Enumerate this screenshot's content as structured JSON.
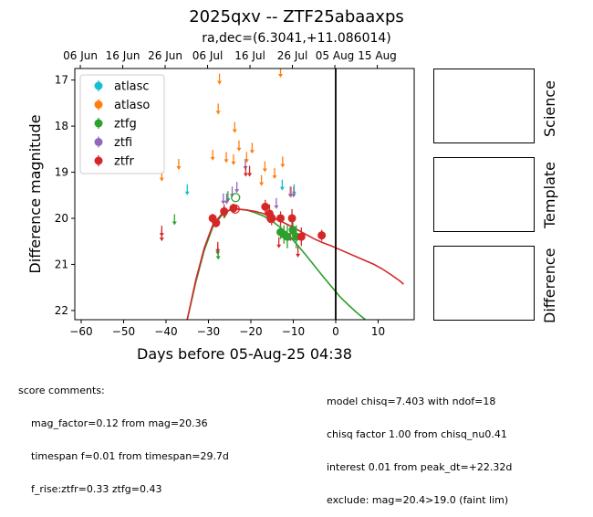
{
  "title": "2025qxv -- ZTF25abaaxps",
  "subtitle": "ra,dec=(6.3041,+11.086014)",
  "chart_data": {
    "type": "scatter",
    "xlabel": "Days before 05-Aug-25 04:38",
    "ylabel": "Difference magnitude",
    "xlim": [
      -61.5,
      18.5
    ],
    "ylim": [
      22.2,
      16.75
    ],
    "y_inverted": true,
    "x_ticks": [
      -60,
      -50,
      -40,
      -30,
      -20,
      -10,
      0,
      10
    ],
    "y_ticks": [
      17,
      18,
      19,
      20,
      21,
      22
    ],
    "top_axis_ticks": [
      {
        "x": -60.2,
        "label": "06 Jun"
      },
      {
        "x": -50.2,
        "label": "16 Jun"
      },
      {
        "x": -40.2,
        "label": "26 Jun"
      },
      {
        "x": -30.2,
        "label": "06 Jul"
      },
      {
        "x": -20.2,
        "label": "16 Jul"
      },
      {
        "x": -10.2,
        "label": "26 Jul"
      },
      {
        "x": -0.2,
        "label": "05 Aug"
      },
      {
        "x": 9.8,
        "label": "15 Aug"
      }
    ],
    "vline_x": 0,
    "legend": {
      "placement": "top-left",
      "entries": [
        {
          "name": "atlasc",
          "color": "#17becf"
        },
        {
          "name": "atlaso",
          "color": "#ff7f0e"
        },
        {
          "name": "ztfg",
          "color": "#2ca02c"
        },
        {
          "name": "ztfi",
          "color": "#9467bd"
        },
        {
          "name": "ztfr",
          "color": "#d62728"
        }
      ]
    },
    "upper_limits": [
      {
        "series": "atlasc",
        "color": "#17becf",
        "points": [
          [
            -35,
            19.4
          ],
          [
            -12.6,
            19.3
          ],
          [
            -9.8,
            19.4
          ]
        ]
      },
      {
        "series": "atlaso",
        "color": "#ff7f0e",
        "points": [
          [
            -41,
            19.1
          ],
          [
            -37,
            18.85
          ],
          [
            -29,
            18.65
          ],
          [
            -27.7,
            17.65
          ],
          [
            -27.4,
            17.0
          ],
          [
            -25.8,
            18.7
          ],
          [
            -24.1,
            18.75
          ],
          [
            -23.8,
            18.05
          ],
          [
            -22.8,
            18.45
          ],
          [
            -21,
            18.7
          ],
          [
            -19.7,
            18.5
          ],
          [
            -17.5,
            19.2
          ],
          [
            -16.7,
            18.9
          ],
          [
            -14.4,
            19.05
          ],
          [
            -12.5,
            18.8
          ],
          [
            -13,
            16.85
          ],
          [
            -10.5,
            19.45
          ]
        ]
      },
      {
        "series": "ztfg",
        "color": "#2ca02c",
        "points": [
          [
            -38,
            20.05
          ],
          [
            -27.8,
            20.7
          ],
          [
            -27.7,
            20.8
          ],
          [
            -26.2,
            19.9
          ],
          [
            -25.4,
            19.55
          ],
          [
            -10.1,
            20.3
          ]
        ]
      },
      {
        "series": "ztfi",
        "color": "#9467bd",
        "points": [
          [
            -26.5,
            19.6
          ],
          [
            -25.7,
            19.6
          ],
          [
            -24.4,
            19.45
          ],
          [
            -23.3,
            19.35
          ],
          [
            -21.3,
            18.85
          ],
          [
            -14,
            19.7
          ],
          [
            -10.7,
            19.45
          ],
          [
            -9.9,
            19.45
          ]
        ]
      },
      {
        "series": "ztfr",
        "color": "#d62728",
        "points": [
          [
            -41,
            20.3
          ],
          [
            -41,
            20.4
          ],
          [
            -27.8,
            20.65
          ],
          [
            -21.2,
            19.0
          ],
          [
            -20.3,
            19.0
          ],
          [
            -13.4,
            20.55
          ],
          [
            -10.7,
            20.4
          ],
          [
            -8.9,
            20.75
          ],
          [
            -10.3,
            20.2
          ]
        ]
      }
    ],
    "detections": [
      {
        "series": "ztfg",
        "color": "#2ca02c",
        "points": [
          [
            -13,
            20.3,
            0.15
          ],
          [
            -12.2,
            20.35,
            0.2
          ],
          [
            -11.4,
            20.4,
            0.25
          ],
          [
            -10.1,
            20.25,
            0.2
          ],
          [
            -9.3,
            20.4,
            0.25
          ]
        ]
      },
      {
        "series": "ztfr",
        "color": "#d62728",
        "points": [
          [
            -29,
            20.0,
            0.1
          ],
          [
            -28.2,
            20.1,
            0.1
          ],
          [
            -26.3,
            19.85,
            0.15
          ],
          [
            -24.1,
            19.78,
            0.1
          ],
          [
            -16.6,
            19.75,
            0.15
          ],
          [
            -15.6,
            19.9,
            0.2
          ],
          [
            -15.1,
            20.0,
            0.15
          ],
          [
            -13,
            20.0,
            0.15
          ],
          [
            -10.3,
            20.0,
            0.2
          ],
          [
            -8.1,
            20.4,
            0.2
          ],
          [
            -3.3,
            20.37,
            0.12
          ]
        ]
      }
    ],
    "open_markers": [
      {
        "series": "ztfg",
        "color": "#2ca02c",
        "x": -23.6,
        "y": 19.55
      },
      {
        "series": "ztfr",
        "color": "#d62728",
        "x": -23.7,
        "y": 19.8
      },
      {
        "series": "ztfr",
        "color": "#d62728",
        "x": -15.2,
        "y": 20.0
      }
    ],
    "model_curves": [
      {
        "series": "ztfg",
        "color": "#2ca02c",
        "points": [
          [
            -35,
            22.2
          ],
          [
            -33,
            21.4
          ],
          [
            -31,
            20.7
          ],
          [
            -29,
            20.2
          ],
          [
            -27,
            19.95
          ],
          [
            -25,
            19.82
          ],
          [
            -23,
            19.8
          ],
          [
            -21,
            19.82
          ],
          [
            -19,
            19.88
          ],
          [
            -17,
            19.95
          ],
          [
            -15,
            20.06
          ],
          [
            -13,
            20.2
          ],
          [
            -11,
            20.38
          ],
          [
            -9,
            20.58
          ],
          [
            -7,
            20.8
          ],
          [
            -5,
            21.03
          ],
          [
            -3,
            21.26
          ],
          [
            -1,
            21.48
          ],
          [
            1,
            21.7
          ],
          [
            3,
            21.88
          ],
          [
            5,
            22.05
          ],
          [
            7,
            22.2
          ]
        ]
      },
      {
        "series": "ztfr",
        "color": "#d62728",
        "points": [
          [
            -35,
            22.2
          ],
          [
            -33,
            21.35
          ],
          [
            -31,
            20.65
          ],
          [
            -29,
            20.15
          ],
          [
            -27,
            19.92
          ],
          [
            -25,
            19.82
          ],
          [
            -23,
            19.8
          ],
          [
            -21,
            19.82
          ],
          [
            -19,
            19.85
          ],
          [
            -17,
            19.9
          ],
          [
            -15,
            19.98
          ],
          [
            -13,
            20.06
          ],
          [
            -11,
            20.15
          ],
          [
            -9,
            20.25
          ],
          [
            -7,
            20.35
          ],
          [
            -5,
            20.45
          ],
          [
            -3,
            20.53
          ],
          [
            -1,
            20.6
          ],
          [
            1,
            20.68
          ],
          [
            3,
            20.76
          ],
          [
            5,
            20.84
          ],
          [
            7,
            20.92
          ],
          [
            9,
            21.0
          ],
          [
            11,
            21.1
          ],
          [
            13,
            21.22
          ],
          [
            15,
            21.35
          ],
          [
            16,
            21.43
          ]
        ]
      }
    ]
  },
  "panels": [
    {
      "label": "Science"
    },
    {
      "label": "Template"
    },
    {
      "label": "Difference"
    }
  ],
  "score_comments": {
    "heading": "score comments:",
    "lines": [
      "mag_factor=0.12 from mag=20.36",
      "timespan f=0.01 from timespan=29.7d",
      "f_rise:ztfr=0.33 ztfg=0.43"
    ]
  },
  "model_comments": {
    "lines": [
      "model chisq=7.403 with ndof=18",
      "chisq factor 1.00 from chisq_nu0.41",
      "interest 0.01 from peak_dt=+22.32d",
      "exclude: mag=20.4>19.0 (faint lim)"
    ]
  }
}
